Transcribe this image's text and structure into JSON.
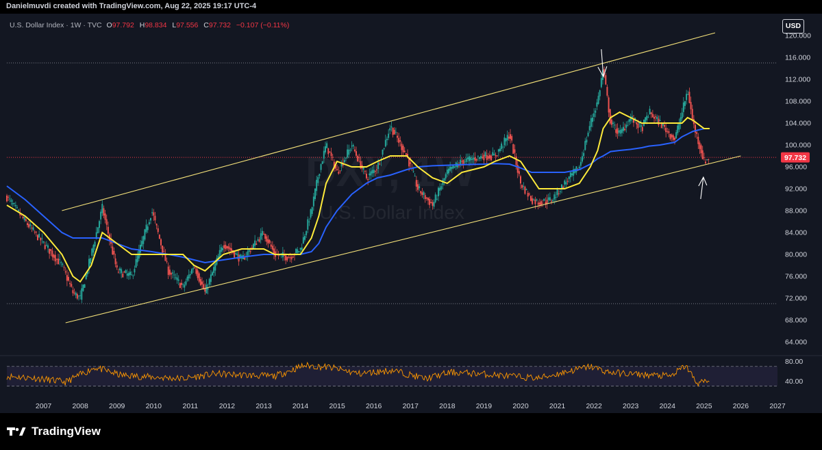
{
  "header": {
    "credit": "Danielmuvdi created with TradingView.com, Aug 22, 2025 19:17 UTC-4",
    "currency_button": "USD"
  },
  "legend": {
    "symbol": "U.S. Dollar Index · 1W · TVC",
    "open_label": "O",
    "open": "97.792",
    "high_label": "H",
    "high": "98.834",
    "low_label": "L",
    "low": "97.556",
    "close_label": "C",
    "close": "97.732",
    "change": "−0.107 (−0.11%)"
  },
  "watermark": {
    "ticker": "DXY, 1W",
    "name": "U.S. Dollar Index"
  },
  "price_tag": "97.732",
  "brand": {
    "name": "TradingView"
  },
  "colors": {
    "background": "#131722",
    "up_candle": "#26a69a",
    "down_candle": "#ef5350",
    "ma_fast": "#ffeb3b",
    "ma_slow": "#2962ff",
    "channel": "#f5e27a",
    "rsi": "#ff9800",
    "price_tag": "#f23645"
  },
  "chart_data": [
    {
      "type": "line",
      "title": "U.S. Dollar Index · 1W · TVC",
      "x": [
        2006.5,
        2007.0,
        2007.5,
        2008.0,
        2008.3,
        2008.5,
        2008.8,
        2009.1,
        2009.5,
        2009.9,
        2010.45,
        2010.9,
        2011.3,
        2011.6,
        2011.9,
        2012.4,
        2012.9,
        2013.5,
        2013.8,
        2014.2,
        2014.5,
        2014.8,
        2015.0,
        2015.2,
        2015.5,
        2015.9,
        2016.3,
        2016.6,
        2016.95,
        2017.4,
        2017.7,
        2018.1,
        2018.5,
        2018.9,
        2019.5,
        2019.8,
        2020.2,
        2020.5,
        2020.8,
        2021.0,
        2021.35,
        2021.7,
        2022.1,
        2022.4,
        2022.6,
        2022.75,
        2022.95,
        2023.2,
        2023.5,
        2023.8,
        2024.0,
        2024.3,
        2024.7,
        2024.9,
        2025.05,
        2025.2,
        2025.5,
        2025.65
      ],
      "series": [
        {
          "values": [
            90.5,
            86,
            82,
            78,
            73,
            72,
            80,
            88.5,
            77,
            76,
            88,
            77,
            74,
            78,
            73,
            82,
            79,
            84,
            80,
            79.5,
            81,
            88,
            95,
            100,
            95,
            100,
            94,
            96,
            103.5,
            98,
            92,
            89,
            95,
            97,
            98,
            98,
            102,
            93,
            90,
            89.5,
            90,
            93,
            96,
            104,
            108,
            114,
            104,
            102,
            105,
            103,
            106,
            104,
            101,
            106,
            110,
            104,
            97,
            97.7
          ]
        },
        {
          "values": [
            89,
            87,
            84,
            80,
            76,
            75,
            78,
            84,
            82,
            80,
            80,
            80,
            80,
            78,
            77,
            80,
            81,
            81,
            80,
            80,
            80,
            83,
            87,
            93,
            97,
            96,
            96,
            97,
            98,
            98,
            96,
            94,
            93,
            95,
            96,
            97,
            98,
            97,
            94,
            92,
            92,
            92,
            93,
            96,
            99,
            103,
            105,
            106,
            105,
            104,
            104,
            104,
            104,
            104,
            105,
            104.5,
            103,
            103
          ]
        },
        {
          "values": [
            92.5,
            90,
            87,
            84,
            83,
            83,
            83,
            83,
            82,
            81,
            80.5,
            80,
            79.5,
            79,
            78.5,
            79,
            79.5,
            80,
            80,
            80,
            80,
            80.5,
            82,
            85,
            88,
            91,
            93,
            94,
            94.5,
            95.5,
            96,
            96.2,
            96.3,
            96.4,
            96.5,
            96.6,
            96.5,
            95.8,
            95,
            95,
            95,
            95,
            95.5,
            96.5,
            97.5,
            98,
            98.8,
            99,
            99.2,
            99.5,
            99.8,
            100,
            100.5,
            101.5,
            102,
            102.5,
            103,
            103
          ]
        }
      ],
      "xlim": [
        2006.5,
        2027.5
      ],
      "ylim": [
        61.5,
        124
      ],
      "x_tick_labels": [
        "2007",
        "2008",
        "2009",
        "2010",
        "2011",
        "2012",
        "2013",
        "2014",
        "2015",
        "2016",
        "2017",
        "2018",
        "2019",
        "2020",
        "2021",
        "2022",
        "2023",
        "2024",
        "2025",
        "2026",
        "2027"
      ],
      "y_tick_labels": [
        "120.000",
        "116.000",
        "112.000",
        "108.000",
        "104.000",
        "100.000",
        "96.000",
        "92.000",
        "88.000",
        "84.000",
        "80.000",
        "76.000",
        "72.000",
        "68.000",
        "64.000"
      ],
      "horizontal_levels": [
        115,
        71
      ],
      "channel_upper": [
        [
          2008.0,
          88
        ],
        [
          2025.8,
          120.5
        ]
      ],
      "channel_lower": [
        [
          2008.1,
          67.5
        ],
        [
          2026.5,
          98
        ]
      ],
      "arrows": [
        "down at 2022.7",
        "up at 2025.5"
      ],
      "last_price": 97.732,
      "grid": false
    },
    {
      "type": "line",
      "x": [
        2006.5,
        2007.3,
        2008.1,
        2008.9,
        2009.6,
        2010.5,
        2011.3,
        2012.2,
        2013.0,
        2013.8,
        2014.6,
        2015.3,
        2016.1,
        2017.0,
        2017.9,
        2018.6,
        2019.4,
        2020.2,
        2021.0,
        2021.8,
        2022.4,
        2022.9,
        2023.4,
        2024.1,
        2024.6,
        2025.0,
        2025.3,
        2025.65
      ],
      "series": [
        {
          "values": [
            50,
            46,
            38,
            68,
            52,
            48,
            45,
            55,
            52,
            50,
            72,
            68,
            55,
            62,
            45,
            58,
            55,
            50,
            46,
            60,
            70,
            58,
            55,
            52,
            50,
            72,
            36,
            40
          ]
        }
      ],
      "ylim": [
        25,
        85
      ],
      "y_tick_labels": [
        "80.00",
        "40.00"
      ],
      "levels": [
        70,
        30
      ]
    }
  ]
}
